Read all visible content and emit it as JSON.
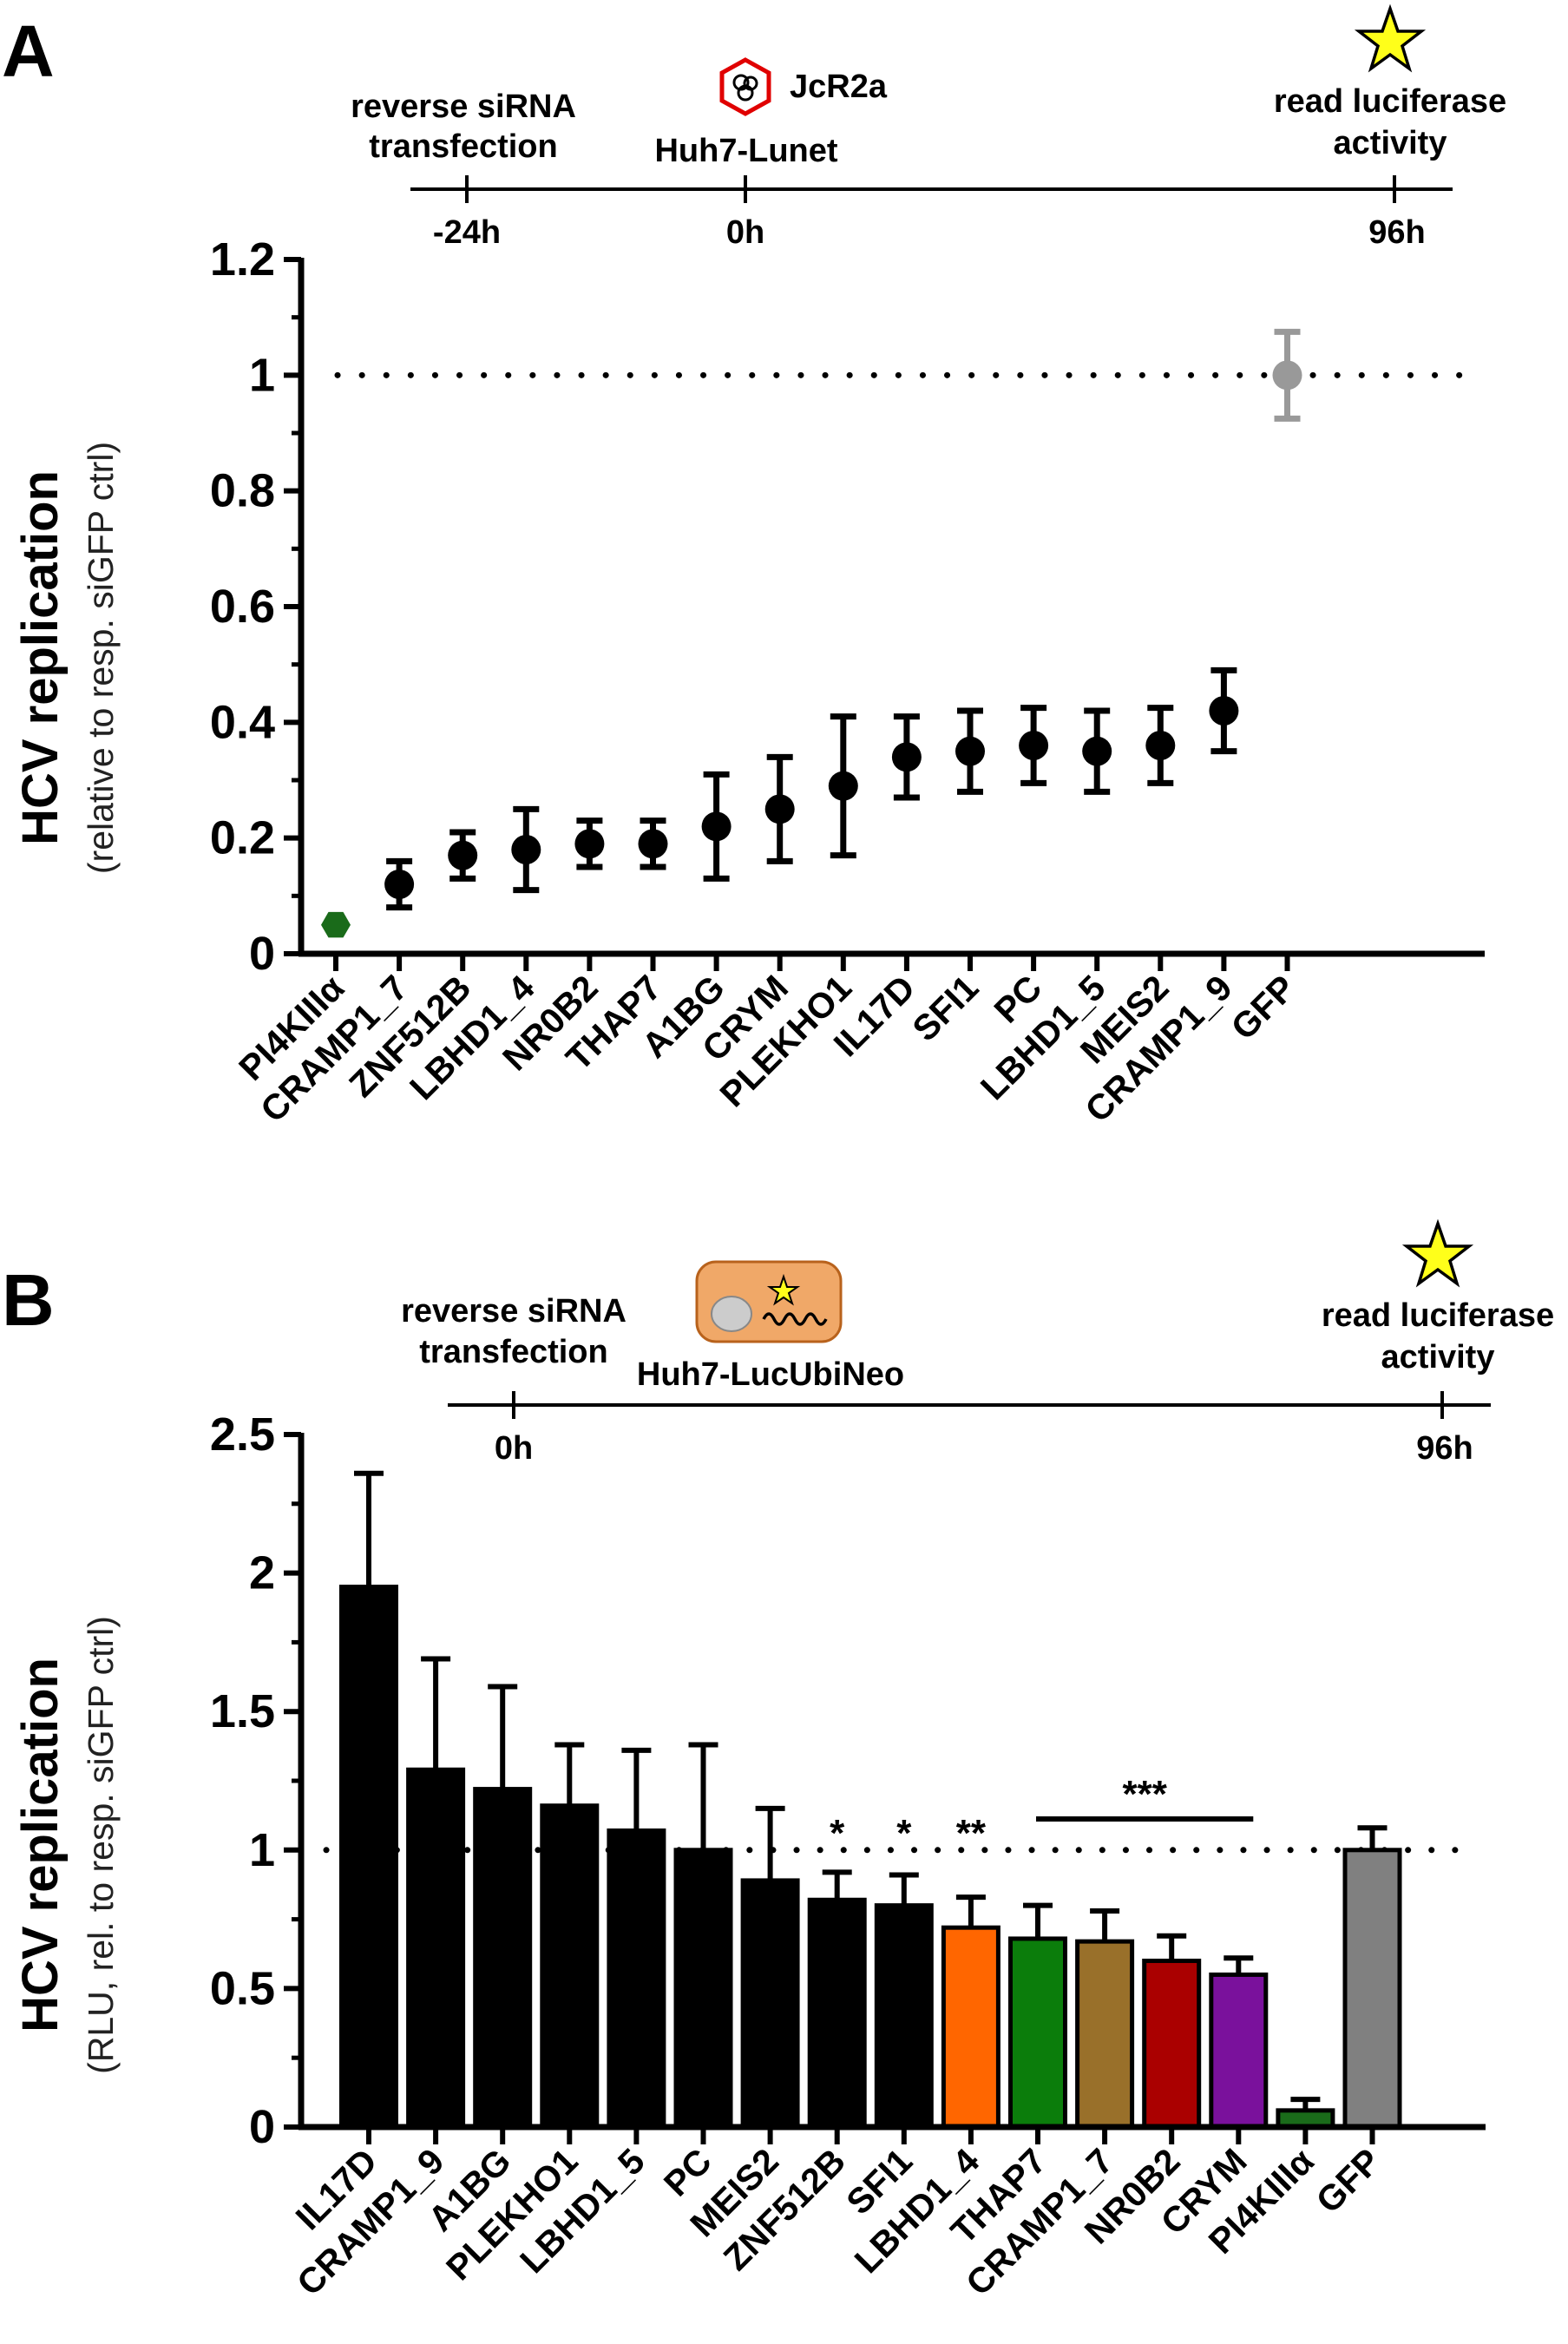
{
  "panel_a": {
    "label": "A",
    "timeline": {
      "left_text_line1": "reverse siRNA",
      "left_text_line2": "transfection",
      "virus_label": "JcR2a",
      "cell_label": "Huh7-Lunet",
      "right_text_line1": "read luciferase",
      "right_text_line2": "activity",
      "ticks": [
        "-24h",
        "0h",
        "96h"
      ]
    }
  },
  "panel_b": {
    "label": "B",
    "timeline": {
      "left_text_line1": "reverse siRNA",
      "left_text_line2": "transfection",
      "cell_label": "Huh7-LucUbiNeo",
      "right_text_line1": "read luciferase",
      "right_text_line2": "activity",
      "ticks": [
        "0h",
        "96h"
      ]
    },
    "significance": [
      "*",
      "*",
      "**",
      "***"
    ]
  },
  "chart_data": [
    {
      "type": "scatter",
      "ylabel": "HCV replication",
      "ylabel_sub": "(relative to resp. siGFP ctrl)",
      "ylim": [
        0,
        1.2
      ],
      "yticks": [
        "0",
        "0.2",
        "0.4",
        "0.6",
        "0.8",
        "1",
        "1.2"
      ],
      "reference_line": 1,
      "categories": [
        "PI4KIIIα",
        "CRAMP1_7",
        "ZNF512B",
        "LBHD1_4",
        "NR0B2",
        "THAP7",
        "A1BG",
        "CRYM",
        "PLEKHO1",
        "IL17D",
        "SFI1",
        "PC",
        "LBHD1_5",
        "MEIS2",
        "CRAMP1_9",
        "GFP"
      ],
      "values": [
        0.05,
        0.12,
        0.17,
        0.18,
        0.19,
        0.19,
        0.22,
        0.25,
        0.29,
        0.34,
        0.35,
        0.36,
        0.35,
        0.36,
        0.42,
        1.0
      ],
      "errors": [
        0.0,
        0.04,
        0.04,
        0.07,
        0.04,
        0.04,
        0.09,
        0.09,
        0.12,
        0.07,
        0.07,
        0.065,
        0.07,
        0.065,
        0.07,
        0.075
      ],
      "colors": [
        "#1a6b1a",
        "#000000",
        "#000000",
        "#000000",
        "#000000",
        "#000000",
        "#000000",
        "#000000",
        "#000000",
        "#000000",
        "#000000",
        "#000000",
        "#000000",
        "#000000",
        "#000000",
        "#999999"
      ]
    },
    {
      "type": "bar",
      "ylabel": "HCV replication",
      "ylabel_sub": "(RLU, rel. to resp. siGFP ctrl)",
      "ylim": [
        0,
        2.5
      ],
      "yticks": [
        "0",
        "0.5",
        "1",
        "1.5",
        "2",
        "2.5"
      ],
      "reference_line": 1,
      "categories": [
        "IL17D",
        "CRAMP1_9",
        "A1BG",
        "PLEKHO1",
        "LBHD1_5",
        "PC",
        "MEIS2",
        "ZNF512B",
        "SFI1",
        "LBHD1_4",
        "THAP7",
        "CRAMP1_7",
        "NR0B2",
        "CRYM",
        "PI4KIIIα",
        "GFP"
      ],
      "values": [
        1.95,
        1.29,
        1.22,
        1.16,
        1.07,
        1.0,
        0.89,
        0.82,
        0.8,
        0.72,
        0.68,
        0.67,
        0.6,
        0.55,
        0.06,
        1.0
      ],
      "errors": [
        0.41,
        0.4,
        0.37,
        0.22,
        0.29,
        0.38,
        0.26,
        0.1,
        0.11,
        0.11,
        0.12,
        0.11,
        0.09,
        0.06,
        0.04,
        0.08
      ],
      "colors": [
        "#000000",
        "#000000",
        "#000000",
        "#000000",
        "#000000",
        "#000000",
        "#000000",
        "#000000",
        "#000000",
        "#ff6600",
        "#0b7d0b",
        "#99702a",
        "#aa0000",
        "#7a119c",
        "#1a6b1a",
        "#808080"
      ]
    }
  ]
}
